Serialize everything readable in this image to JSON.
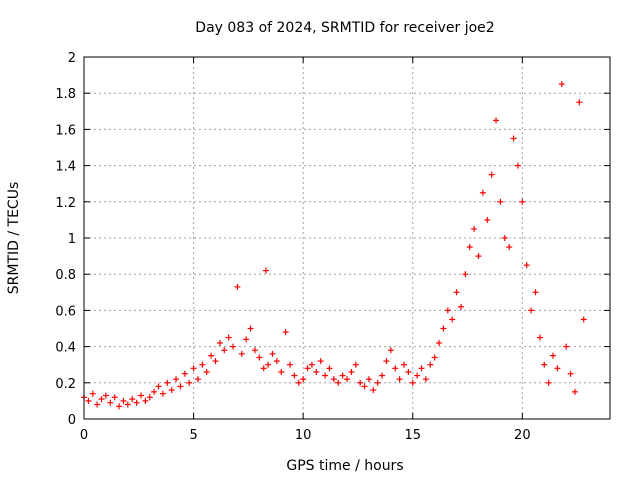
{
  "chart_data": {
    "type": "scatter",
    "title": "Day 083 of 2024, SRMTID for receiver joe2",
    "xlabel": "GPS time / hours",
    "ylabel": "SRMTID / TECUs",
    "xlim": [
      0,
      24
    ],
    "ylim": [
      0,
      2
    ],
    "xticks": [
      0,
      5,
      10,
      15,
      20
    ],
    "yticks": [
      0,
      0.2,
      0.4,
      0.6,
      0.8,
      1,
      1.2,
      1.4,
      1.6,
      1.8,
      2
    ],
    "xtick_labels": [
      "0",
      "5",
      "10",
      "15",
      "20"
    ],
    "ytick_labels": [
      "0",
      "0.2",
      "0.4",
      "0.6",
      "0.8",
      "1",
      "1.2",
      "1.4",
      "1.6",
      "1.8",
      "2"
    ],
    "grid": true,
    "marker": "+",
    "color": "#ff0000",
    "series": [
      {
        "name": "SRMTID",
        "points": [
          [
            0.0,
            0.12
          ],
          [
            0.2,
            0.1
          ],
          [
            0.4,
            0.14
          ],
          [
            0.6,
            0.08
          ],
          [
            0.8,
            0.11
          ],
          [
            1.0,
            0.13
          ],
          [
            1.2,
            0.09
          ],
          [
            1.4,
            0.12
          ],
          [
            1.6,
            0.07
          ],
          [
            1.8,
            0.1
          ],
          [
            2.0,
            0.08
          ],
          [
            2.2,
            0.11
          ],
          [
            2.4,
            0.09
          ],
          [
            2.6,
            0.13
          ],
          [
            2.8,
            0.1
          ],
          [
            3.0,
            0.12
          ],
          [
            3.2,
            0.15
          ],
          [
            3.4,
            0.18
          ],
          [
            3.6,
            0.14
          ],
          [
            3.8,
            0.2
          ],
          [
            4.0,
            0.16
          ],
          [
            4.2,
            0.22
          ],
          [
            4.4,
            0.18
          ],
          [
            4.6,
            0.25
          ],
          [
            4.8,
            0.2
          ],
          [
            5.0,
            0.28
          ],
          [
            5.2,
            0.22
          ],
          [
            5.4,
            0.3
          ],
          [
            5.6,
            0.26
          ],
          [
            5.8,
            0.35
          ],
          [
            6.0,
            0.32
          ],
          [
            6.2,
            0.42
          ],
          [
            6.4,
            0.38
          ],
          [
            6.6,
            0.45
          ],
          [
            6.8,
            0.4
          ],
          [
            7.0,
            0.73
          ],
          [
            7.2,
            0.36
          ],
          [
            7.4,
            0.44
          ],
          [
            7.6,
            0.5
          ],
          [
            7.8,
            0.38
          ],
          [
            8.0,
            0.34
          ],
          [
            8.2,
            0.28
          ],
          [
            8.3,
            0.82
          ],
          [
            8.4,
            0.3
          ],
          [
            8.6,
            0.36
          ],
          [
            8.8,
            0.32
          ],
          [
            9.0,
            0.26
          ],
          [
            9.2,
            0.48
          ],
          [
            9.4,
            0.3
          ],
          [
            9.6,
            0.24
          ],
          [
            9.8,
            0.2
          ],
          [
            10.0,
            0.22
          ],
          [
            10.2,
            0.28
          ],
          [
            10.4,
            0.3
          ],
          [
            10.6,
            0.26
          ],
          [
            10.8,
            0.32
          ],
          [
            11.0,
            0.24
          ],
          [
            11.2,
            0.28
          ],
          [
            11.4,
            0.22
          ],
          [
            11.6,
            0.2
          ],
          [
            11.8,
            0.24
          ],
          [
            12.0,
            0.22
          ],
          [
            12.2,
            0.26
          ],
          [
            12.4,
            0.3
          ],
          [
            12.6,
            0.2
          ],
          [
            12.8,
            0.18
          ],
          [
            13.0,
            0.22
          ],
          [
            13.2,
            0.16
          ],
          [
            13.4,
            0.2
          ],
          [
            13.6,
            0.24
          ],
          [
            13.8,
            0.32
          ],
          [
            14.0,
            0.38
          ],
          [
            14.2,
            0.28
          ],
          [
            14.4,
            0.22
          ],
          [
            14.6,
            0.3
          ],
          [
            14.8,
            0.26
          ],
          [
            15.0,
            0.2
          ],
          [
            15.2,
            0.24
          ],
          [
            15.4,
            0.28
          ],
          [
            15.6,
            0.22
          ],
          [
            15.8,
            0.3
          ],
          [
            16.0,
            0.34
          ],
          [
            16.2,
            0.42
          ],
          [
            16.4,
            0.5
          ],
          [
            16.6,
            0.6
          ],
          [
            16.8,
            0.55
          ],
          [
            17.0,
            0.7
          ],
          [
            17.2,
            0.62
          ],
          [
            17.4,
            0.8
          ],
          [
            17.6,
            0.95
          ],
          [
            17.8,
            1.05
          ],
          [
            18.0,
            0.9
          ],
          [
            18.2,
            1.25
          ],
          [
            18.4,
            1.1
          ],
          [
            18.6,
            1.35
          ],
          [
            18.8,
            1.65
          ],
          [
            19.0,
            1.2
          ],
          [
            19.2,
            1.0
          ],
          [
            19.4,
            0.95
          ],
          [
            19.6,
            1.55
          ],
          [
            19.8,
            1.4
          ],
          [
            20.0,
            1.2
          ],
          [
            20.2,
            0.85
          ],
          [
            20.4,
            0.6
          ],
          [
            20.6,
            0.7
          ],
          [
            20.8,
            0.45
          ],
          [
            21.0,
            0.3
          ],
          [
            21.2,
            0.2
          ],
          [
            21.4,
            0.35
          ],
          [
            21.6,
            0.28
          ],
          [
            21.8,
            1.85
          ],
          [
            22.0,
            0.4
          ],
          [
            22.2,
            0.25
          ],
          [
            22.4,
            0.15
          ],
          [
            22.6,
            1.75
          ],
          [
            22.8,
            0.55
          ]
        ]
      }
    ]
  }
}
